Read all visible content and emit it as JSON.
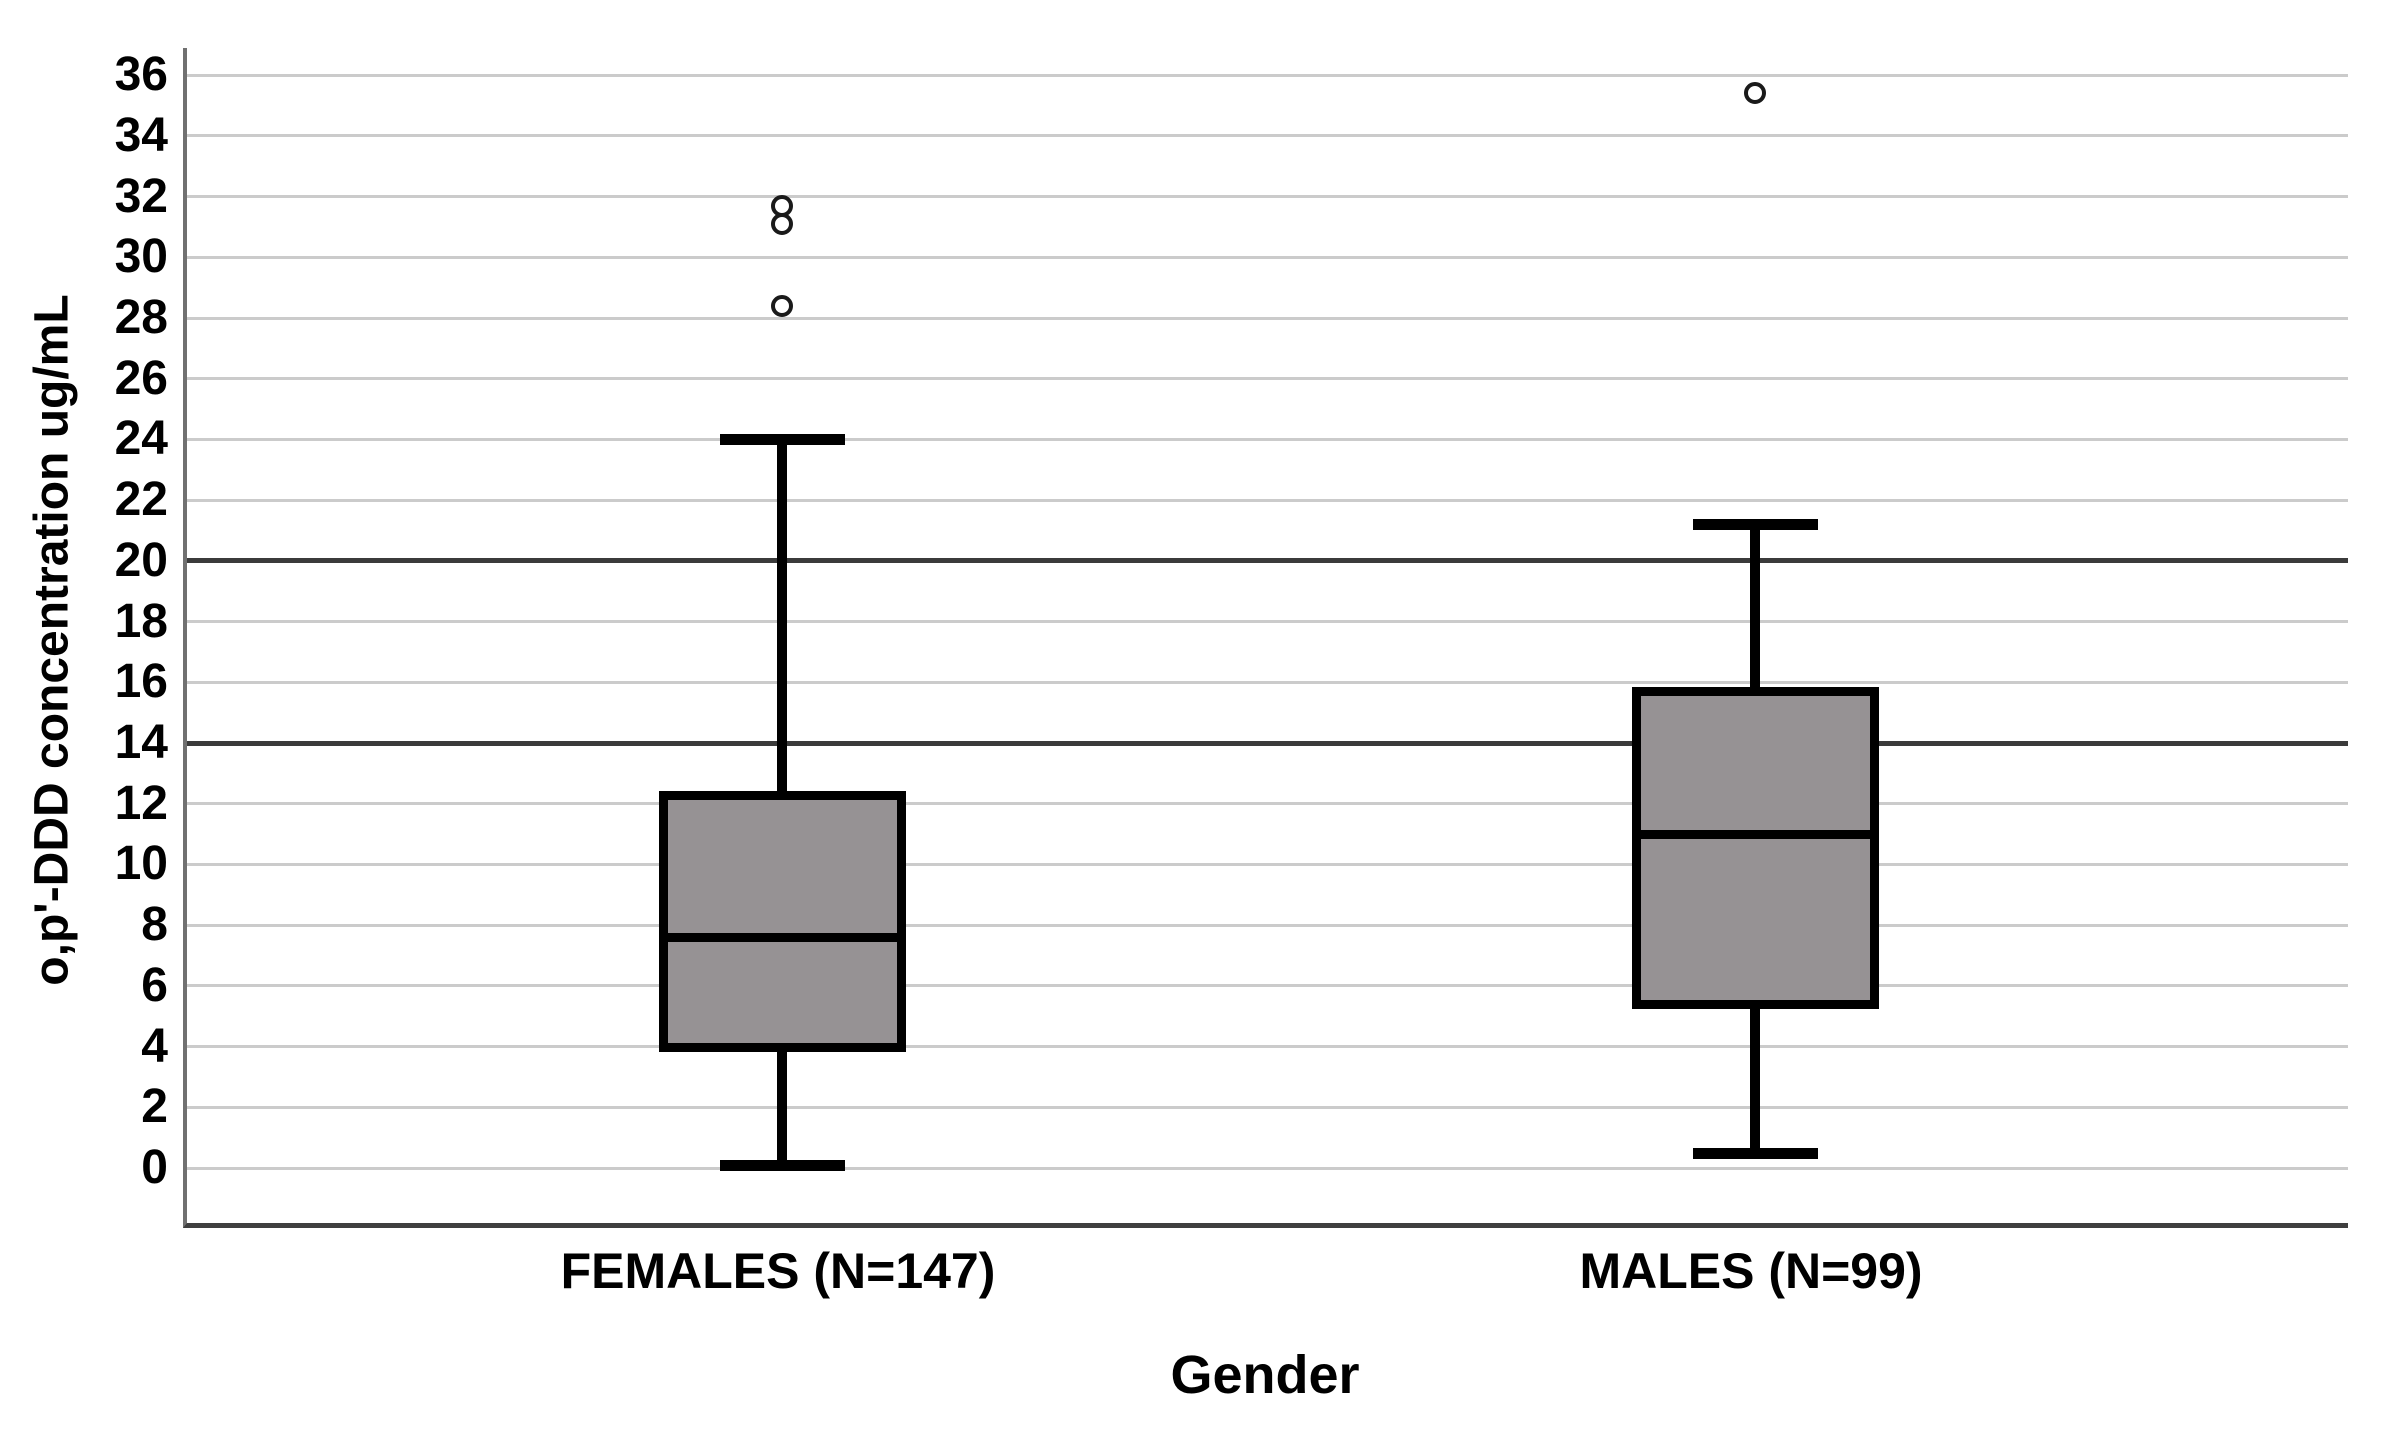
{
  "chart_data": {
    "type": "boxplot",
    "title": "",
    "xlabel": "Gender",
    "ylabel": "o,p'-DDD concentration ug/mL",
    "ylim": [
      0,
      36
    ],
    "yticks": [
      0,
      2,
      4,
      6,
      8,
      10,
      12,
      14,
      16,
      18,
      20,
      22,
      24,
      26,
      28,
      30,
      32,
      34,
      36
    ],
    "ytick_step": 2,
    "grid": "horizontal",
    "dark_gridlines": [
      14,
      20
    ],
    "legend": "none",
    "categories": [
      "FEMALES (N=147)",
      "MALES (N=99)"
    ],
    "series": [
      {
        "category": "FEMALES (N=147)",
        "whisker_low": 0.1,
        "q1": 4.0,
        "median": 7.6,
        "q3": 12.3,
        "whisker_high": 24.0,
        "outliers": [
          28.4,
          31.1,
          31.7
        ]
      },
      {
        "category": "MALES (N=99)",
        "whisker_low": 0.5,
        "q1": 5.4,
        "median": 11.0,
        "q3": 15.7,
        "whisker_high": 21.2,
        "outliers": [
          35.4
        ]
      }
    ],
    "colors": {
      "box_fill": "#969294",
      "box_border": "#000000",
      "gridline_light": "#cbcbcb",
      "gridline_dark": "#3b3b3b",
      "axis_line": "#707070",
      "axis_bottom": "#3f3f3f",
      "background": "#ffffff",
      "text": "#000000"
    }
  }
}
